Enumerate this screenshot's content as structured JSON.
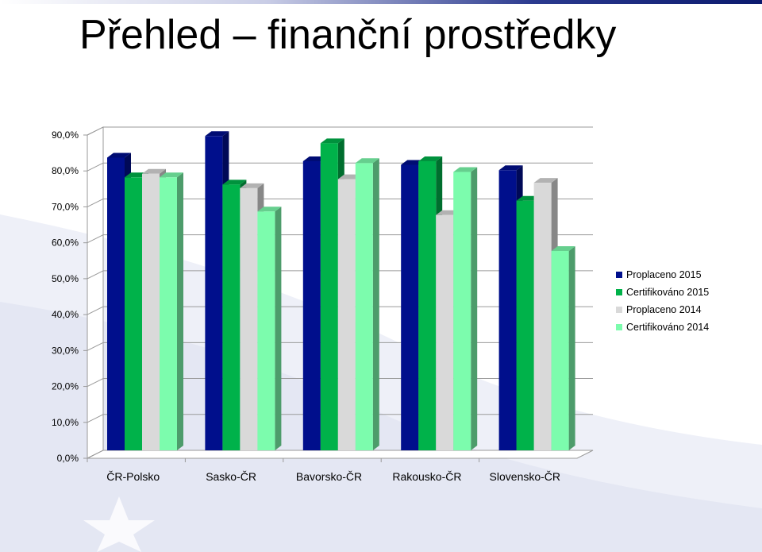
{
  "slide": {
    "title": "Přehled – finanční prostředky"
  },
  "chart_data": {
    "type": "bar",
    "categories": [
      "ČR-Polsko",
      "Sasko-ČR",
      "Bavorsko-ČR",
      "Rakousko-ČR",
      "Slovensko-ČR"
    ],
    "series": [
      {
        "name": "Proplaceno 2015",
        "color": "#000f8c",
        "values": [
          81.5,
          87.5,
          80.5,
          79.5,
          78.0
        ]
      },
      {
        "name": "Certifikováno 2015",
        "color": "#00b24a",
        "values": [
          76.0,
          74.0,
          85.5,
          80.5,
          69.5
        ]
      },
      {
        "name": "Proplaceno 2014",
        "color": "#d9d9d9",
        "values": [
          77.0,
          73.0,
          75.5,
          65.5,
          74.5
        ]
      },
      {
        "name": "Certifikováno 2014",
        "color": "#7cfcad",
        "values": [
          76.0,
          66.5,
          80.0,
          77.5,
          55.5
        ]
      }
    ],
    "yticks": [
      "0,0%",
      "10,0%",
      "20,0%",
      "30,0%",
      "40,0%",
      "50,0%",
      "60,0%",
      "70,0%",
      "80,0%",
      "90,0%"
    ],
    "ylim": [
      0,
      90
    ],
    "grid": true,
    "legend_position": "right",
    "three_d": true
  }
}
